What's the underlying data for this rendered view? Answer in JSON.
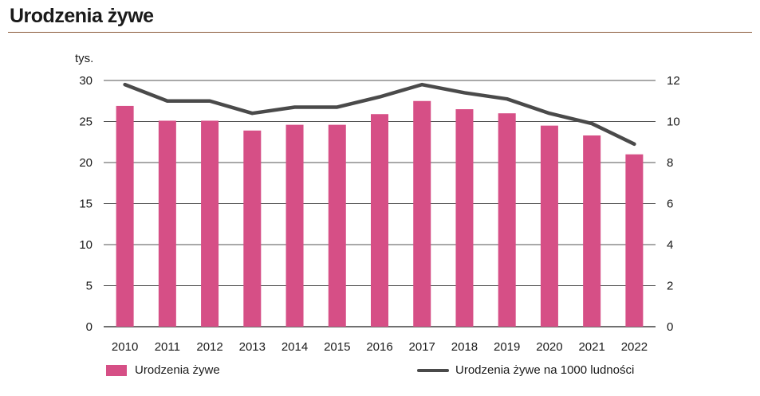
{
  "title": "Urodzenia żywe",
  "colors": {
    "bar": "#d64f86",
    "line": "#4a4a4a",
    "grid": "#1a1a1a",
    "rule": "#8a5a3a"
  },
  "chart_data": {
    "type": "bar",
    "title": "Urodzenia żywe",
    "left_axis_unit": "tys.",
    "categories": [
      "2010",
      "2011",
      "2012",
      "2013",
      "2014",
      "2015",
      "2016",
      "2017",
      "2018",
      "2019",
      "2020",
      "2021",
      "2022"
    ],
    "series": [
      {
        "name": "Urodzenia żywe",
        "type": "bar",
        "axis": "left",
        "values": [
          26.9,
          25.1,
          25.1,
          23.9,
          24.6,
          24.6,
          25.9,
          27.5,
          26.5,
          26.0,
          24.5,
          23.3,
          21.0
        ]
      },
      {
        "name": "Urodzenia żywe na 1000 ludności",
        "type": "line",
        "axis": "right",
        "values": [
          11.8,
          11.0,
          11.0,
          10.4,
          10.7,
          10.7,
          11.2,
          11.8,
          11.4,
          11.1,
          10.4,
          9.9,
          8.9
        ]
      }
    ],
    "ylim_left": [
      0,
      30
    ],
    "yticks_left": [
      0,
      5,
      10,
      15,
      20,
      25,
      30
    ],
    "ylim_right": [
      0,
      12
    ],
    "yticks_right": [
      0,
      2,
      4,
      6,
      8,
      10,
      12
    ],
    "grid": "horizontal",
    "legend_position": "bottom"
  }
}
